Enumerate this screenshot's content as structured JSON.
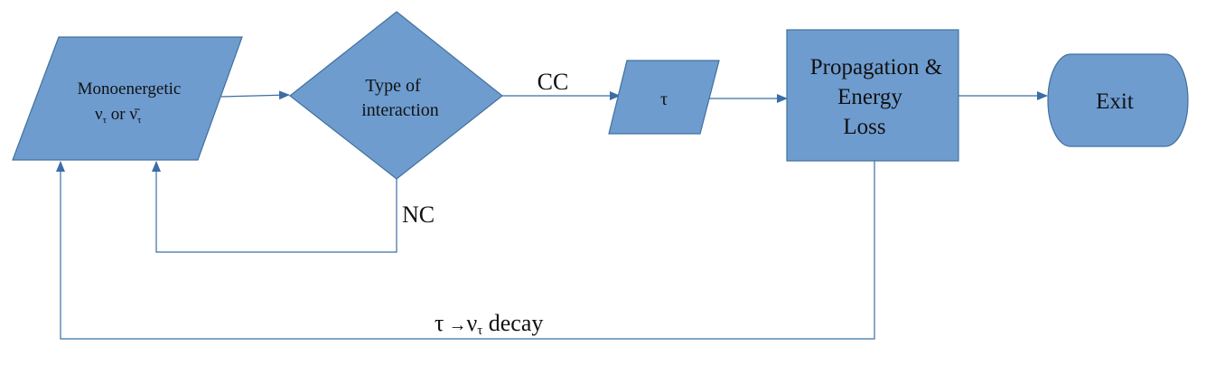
{
  "colors": {
    "shape_fill": "#6e9ccf",
    "shape_stroke": "#41719c",
    "connector": "#3b6ea5",
    "text": "#111111"
  },
  "nodes": {
    "source": {
      "line1": "Monoenergetic",
      "line2_nu": "ν",
      "line2_sub1": "τ",
      "line2_or": " or ",
      "line2_nubar": "ν̄",
      "line2_sub2": "τ"
    },
    "decision": {
      "line1": "Type of",
      "line2": "interaction"
    },
    "tau": {
      "label": "τ"
    },
    "propagation": {
      "line1": "Propagation &",
      "line2": "Energy",
      "line3": "Loss"
    },
    "exit": {
      "label": "Exit"
    }
  },
  "edges": {
    "cc_label": "CC",
    "nc_label": "NC",
    "decay": {
      "tau": "τ",
      "arrow": " →",
      "nu": "ν",
      "sub": "τ",
      "word": " decay"
    }
  }
}
